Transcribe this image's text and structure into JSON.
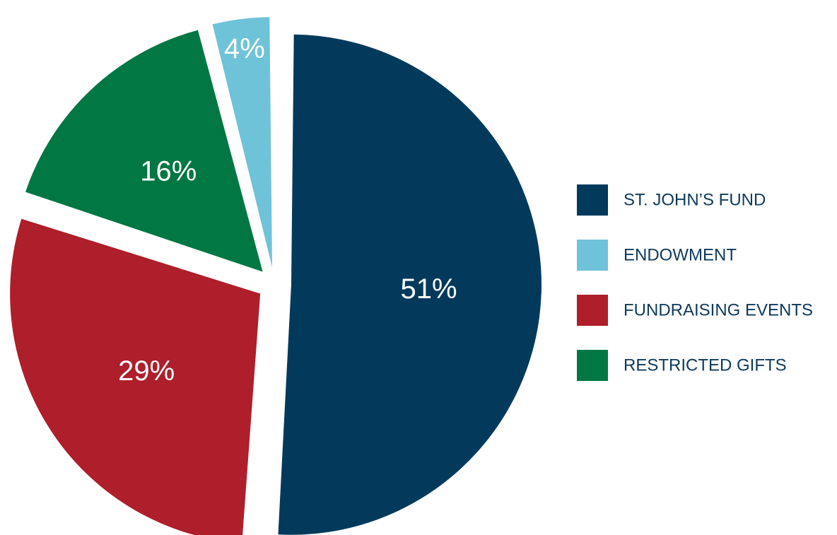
{
  "chart_data": {
    "type": "pie",
    "slices": [
      {
        "name": "ST. JOHN’S FUND",
        "value": 51,
        "label": "51%",
        "color": "#033a5b"
      },
      {
        "name": "FUNDRAISING EVENTS",
        "value": 29,
        "label": "29%",
        "color": "#ae1e2b"
      },
      {
        "name": "RESTRICTED GIFTS",
        "value": 16,
        "label": "16%",
        "color": "#017743"
      },
      {
        "name": "ENDOWMENT",
        "value": 4,
        "label": "4%",
        "color": "#6fc3d9"
      }
    ],
    "legend": {
      "position": "right",
      "items": [
        {
          "label": "ST. JOHN’S FUND",
          "color": "#033a5b"
        },
        {
          "label": "ENDOWMENT",
          "color": "#6fc3d9"
        },
        {
          "label": "FUNDRAISING EVENTS",
          "color": "#ae1e2b"
        },
        {
          "label": "RESTRICTED GIFTS",
          "color": "#017743"
        }
      ]
    },
    "title": ""
  }
}
